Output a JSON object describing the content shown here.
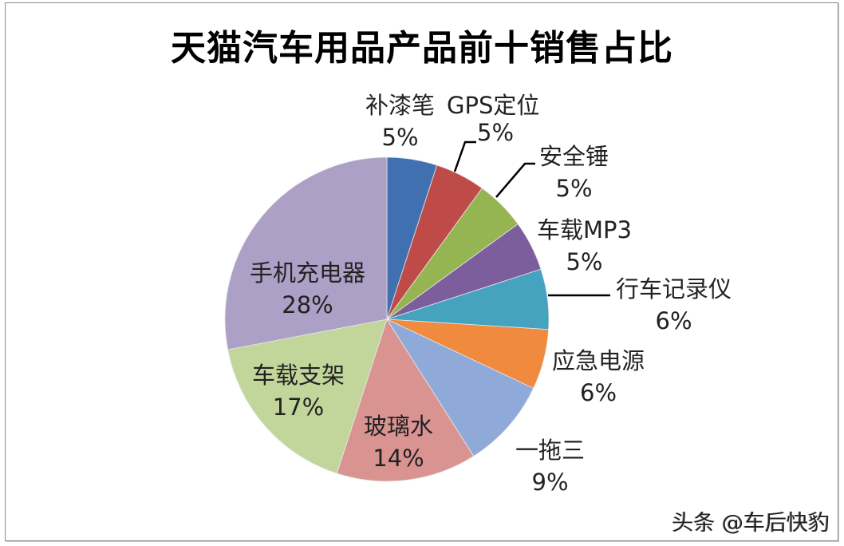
{
  "chart_data": {
    "type": "pie",
    "title": "天猫汽车用品产品前十销售占比",
    "categories": [
      "补漆笔",
      "GPS定位",
      "安全锤",
      "车载MP3",
      "行车记录仪",
      "应急电源",
      "一拖三",
      "玻璃水",
      "车载支架",
      "手机充电器"
    ],
    "values": [
      5,
      5,
      5,
      5,
      6,
      6,
      9,
      14,
      17,
      28
    ],
    "value_unit": "%",
    "colors": [
      "#4170b0",
      "#be4b48",
      "#95b552",
      "#7b5e9b",
      "#45a3bf",
      "#ef8a3f",
      "#8faad9",
      "#d99492",
      "#c2d69b",
      "#ada0c6"
    ],
    "start_angle_deg": 0,
    "direction": "clockwise",
    "legend": "none",
    "data_labels": [
      {
        "name": "补漆笔",
        "pct": "5%"
      },
      {
        "name": "GPS定位",
        "pct": "5%"
      },
      {
        "name": "安全锤",
        "pct": "5%"
      },
      {
        "name": "车载MP3",
        "pct": "5%"
      },
      {
        "name": "行车记录仪",
        "pct": "6%"
      },
      {
        "name": "应急电源",
        "pct": "6%"
      },
      {
        "name": "一拖三",
        "pct": "9%"
      },
      {
        "name": "玻璃水",
        "pct": "14%"
      },
      {
        "name": "车载支架",
        "pct": "17%"
      },
      {
        "name": "手机充电器",
        "pct": "28%"
      }
    ]
  },
  "watermark": "头条 @车后快豹"
}
